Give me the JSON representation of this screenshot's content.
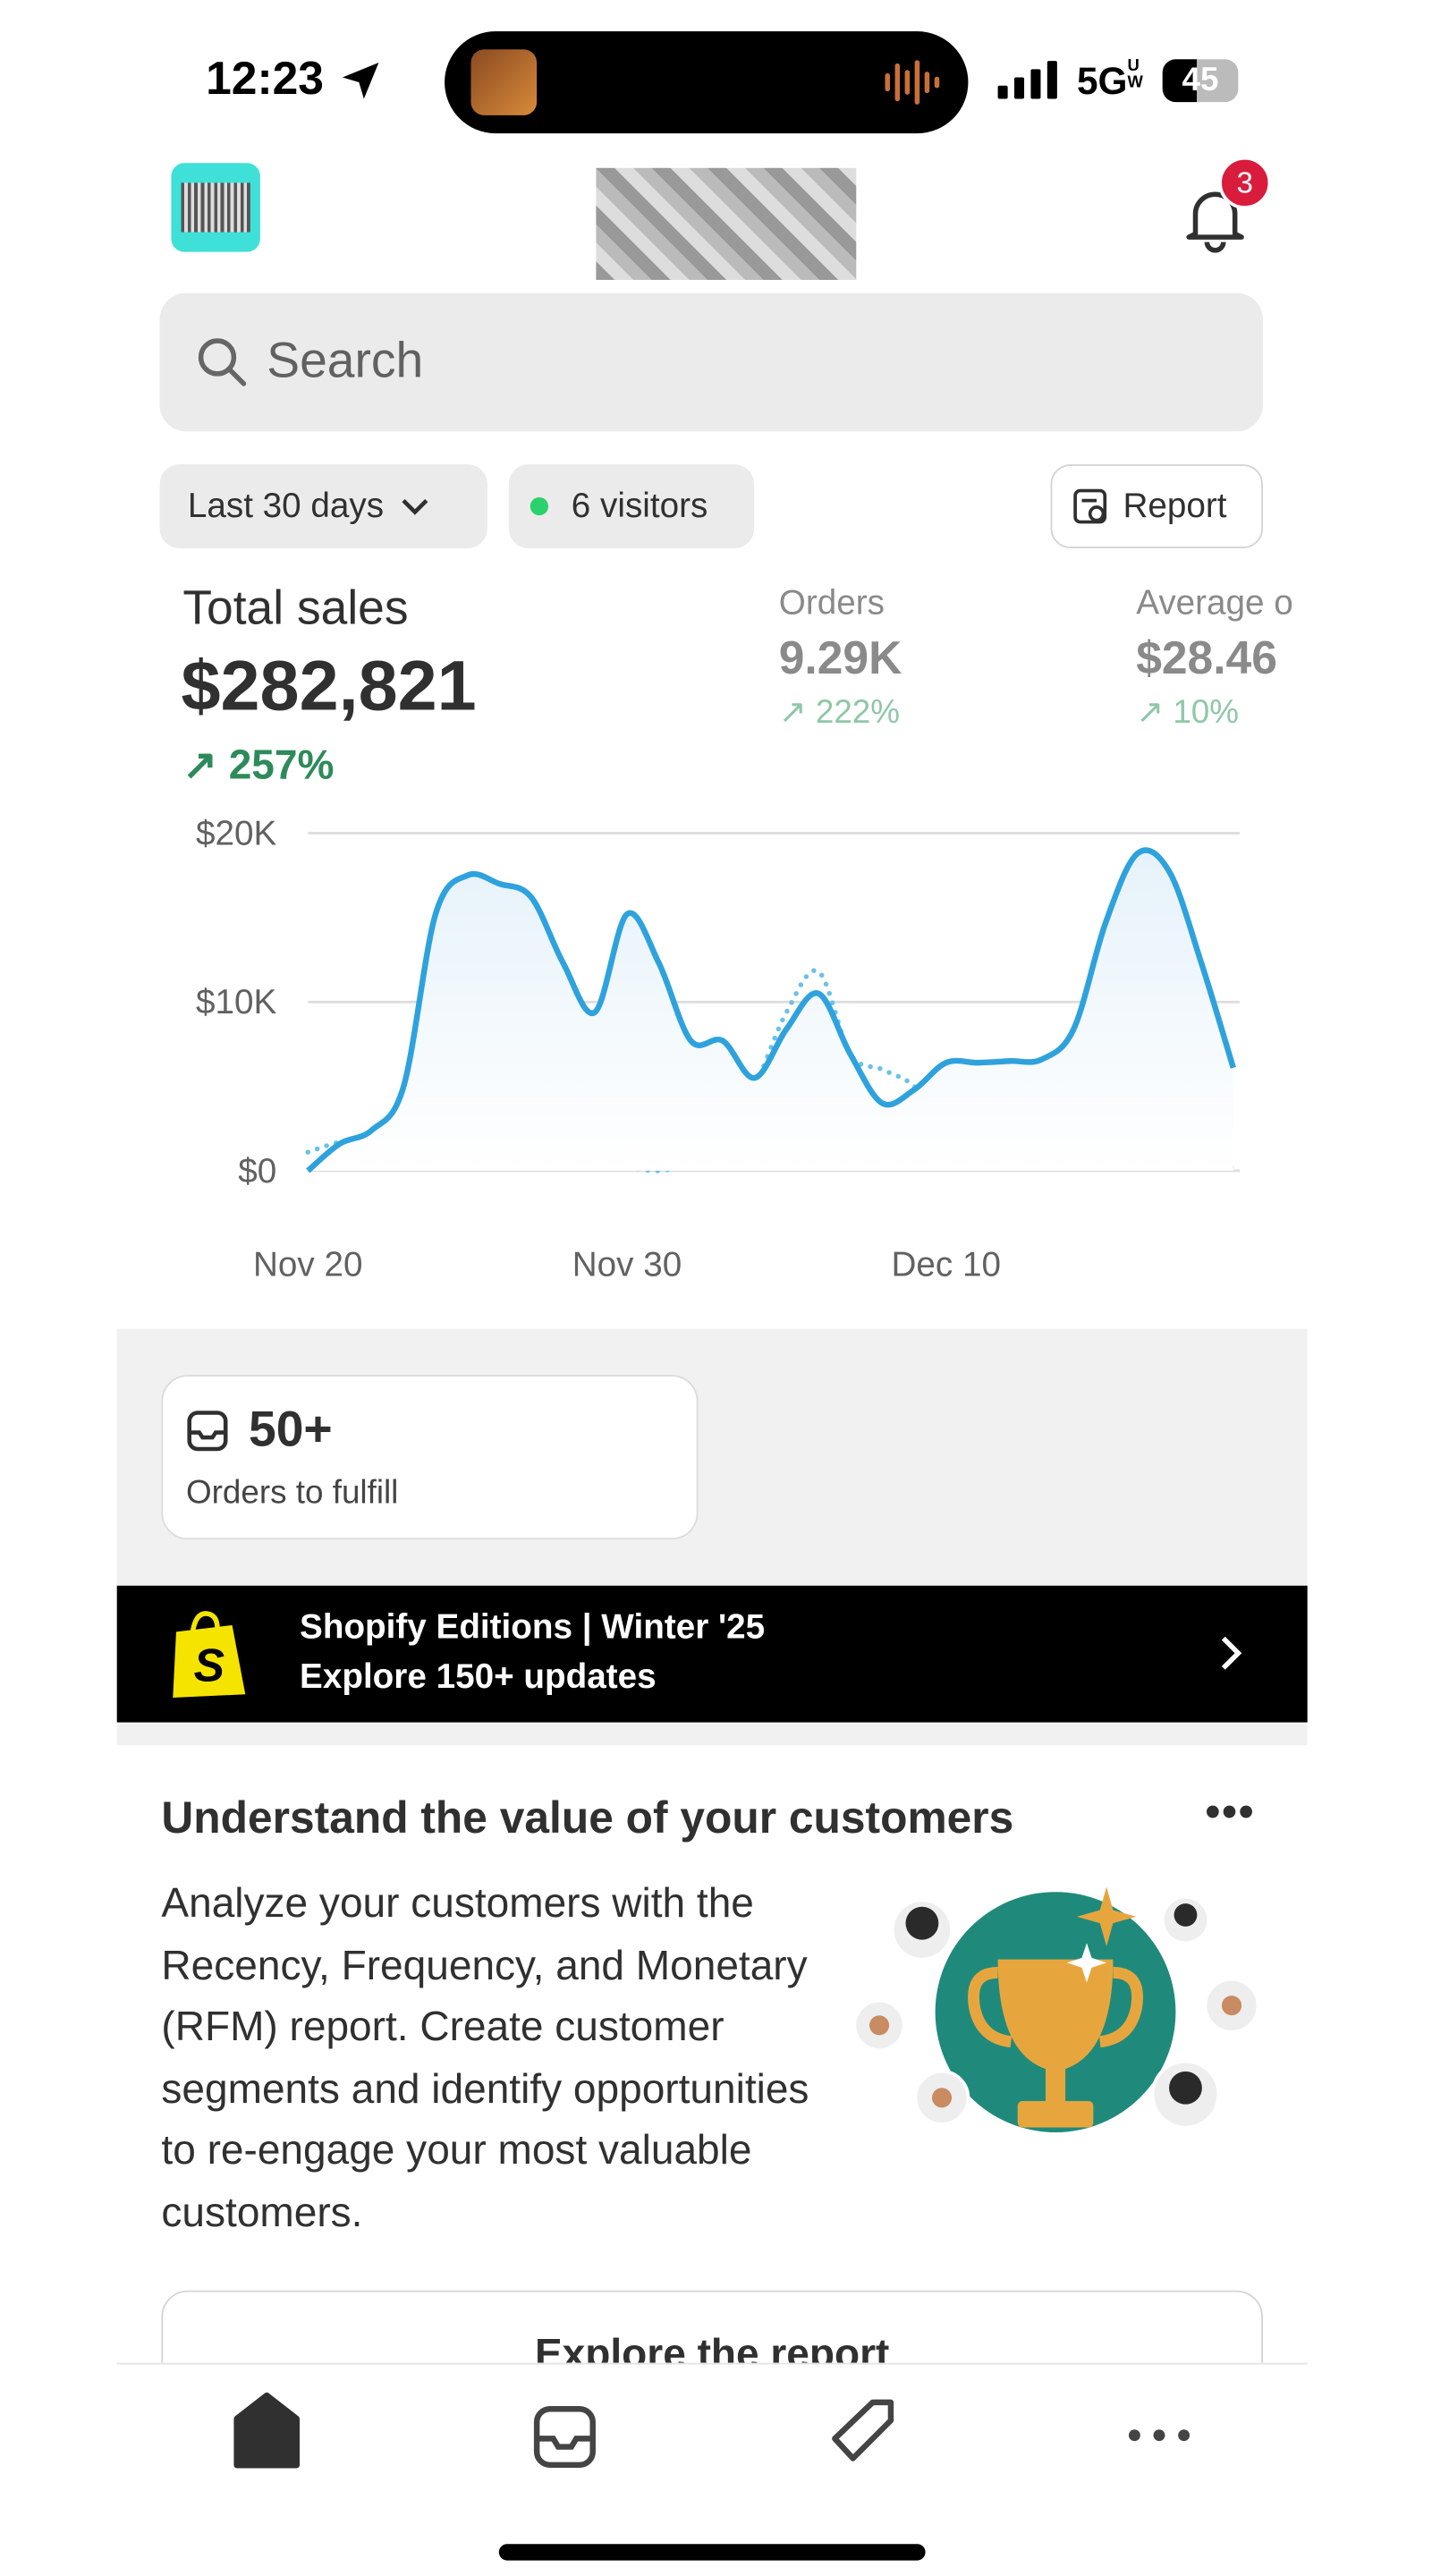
{
  "status_bar": {
    "time": "12:23",
    "network": "5G",
    "network_sub": "UW",
    "battery": "45"
  },
  "header": {
    "notification_count": "3"
  },
  "search": {
    "placeholder": "Search"
  },
  "filters": {
    "date_range": "Last 30 days",
    "visitors": "6 visitors",
    "report": "Report"
  },
  "metrics": {
    "total_sales": {
      "label": "Total sales",
      "value": "$282,821",
      "change": "257%"
    },
    "orders": {
      "label": "Orders",
      "value": "9.29K",
      "change": "222%"
    },
    "average": {
      "label": "Average o",
      "value": "$28.46",
      "change": "10%"
    }
  },
  "sales_chart": {
    "type": "line",
    "ylim": [
      0,
      20000
    ],
    "yticks": [
      {
        "value": 0,
        "label": "$0"
      },
      {
        "value": 10000,
        "label": "$10K"
      },
      {
        "value": 20000,
        "label": "$20K"
      }
    ],
    "grid": true,
    "categories": [
      "Nov 20",
      null,
      null,
      null,
      null,
      null,
      null,
      null,
      null,
      null,
      "Nov 30",
      null,
      null,
      null,
      null,
      null,
      null,
      null,
      null,
      null,
      "Dec 10",
      null,
      null,
      null,
      null,
      null,
      null,
      null,
      null,
      null
    ],
    "series": [
      {
        "color": "#2ea2dd",
        "style": "solid",
        "values": [
          0,
          1600,
          2400,
          5000,
          15200,
          17500,
          17000,
          16200,
          12300,
          9400,
          15200,
          12300,
          7700,
          7700,
          5500,
          8400,
          10500,
          6900,
          4000,
          4800,
          6400,
          6400,
          6500,
          6600,
          8400,
          14700,
          18800,
          17700,
          12300,
          6100
        ]
      },
      {
        "color": "#6cc0e8",
        "style": "dotted",
        "values": [
          1100,
          1700,
          1900,
          2000,
          1800,
          1500,
          1300,
          900,
          900,
          200,
          200,
          0,
          500,
          2000,
          5000,
          9400,
          11800,
          6900,
          6000,
          5000,
          2500,
          800,
          1300,
          1400,
          2200,
          3400,
          3000,
          2600,
          2000,
          100
        ]
      }
    ]
  },
  "fulfill": {
    "count": "50+",
    "label": "Orders to fulfill"
  },
  "banner": {
    "title": "Shopify Editions | Winter '25",
    "subtitle": "Explore 150+ updates"
  },
  "card": {
    "title": "Understand the value of your customers",
    "body": "Analyze your customers with the Recency, Frequency, and Monetary (RFM) report. Create customer segments and identify opportunities to re-engage your most valuable customers.",
    "button": "Explore the report"
  }
}
